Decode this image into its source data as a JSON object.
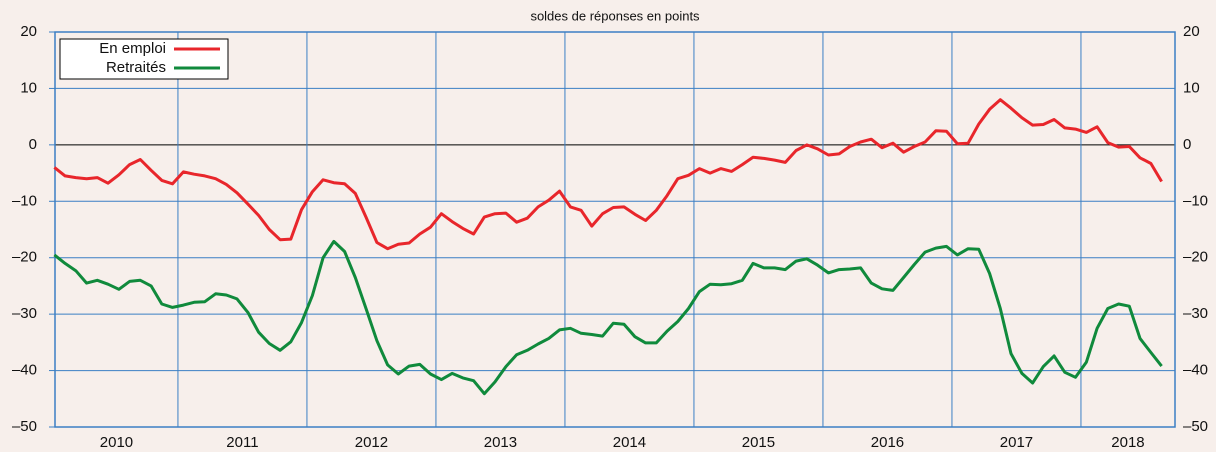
{
  "chart_data": {
    "type": "line",
    "subtitle": "soldes de réponses en points",
    "categories": [
      "2010",
      "2011",
      "2012",
      "2013",
      "2014",
      "2015",
      "2016",
      "2017",
      "2018"
    ],
    "x": [
      2010.042,
      2010.125,
      2010.208,
      2010.292,
      2010.375,
      2010.458,
      2010.542,
      2010.625,
      2010.708,
      2010.792,
      2010.875,
      2010.958,
      2011.042,
      2011.125,
      2011.208,
      2011.292,
      2011.375,
      2011.458,
      2011.542,
      2011.625,
      2011.708,
      2011.792,
      2011.875,
      2011.958,
      2012.042,
      2012.125,
      2012.208,
      2012.292,
      2012.375,
      2012.458,
      2012.542,
      2012.625,
      2012.708,
      2012.792,
      2012.875,
      2012.958,
      2013.042,
      2013.125,
      2013.208,
      2013.292,
      2013.375,
      2013.458,
      2013.542,
      2013.625,
      2013.708,
      2013.792,
      2013.875,
      2013.958,
      2014.042,
      2014.125,
      2014.208,
      2014.292,
      2014.375,
      2014.458,
      2014.542,
      2014.625,
      2014.708,
      2014.792,
      2014.875,
      2014.958,
      2015.042,
      2015.125,
      2015.208,
      2015.292,
      2015.375,
      2015.458,
      2015.542,
      2015.625,
      2015.708,
      2015.792,
      2015.875,
      2015.958,
      2016.042,
      2016.125,
      2016.208,
      2016.292,
      2016.375,
      2016.458,
      2016.542,
      2016.625,
      2016.708,
      2016.792,
      2016.875,
      2016.958,
      2017.042,
      2017.125,
      2017.208,
      2017.292,
      2017.375,
      2017.458,
      2017.542,
      2017.625,
      2017.708,
      2017.792,
      2017.875,
      2017.958,
      2018.042,
      2018.125,
      2018.208,
      2018.292,
      2018.375,
      2018.458,
      2018.542,
      2018.625
    ],
    "series": [
      {
        "name": "En emploi",
        "color": "#e8262b",
        "values": [
          -4,
          -5.5,
          -5.8,
          -6,
          -5.8,
          -6.8,
          -5.3,
          -3.5,
          -2.6,
          -4.5,
          -6.3,
          -6.9,
          -4.8,
          -5.2,
          -5.5,
          -6,
          -7,
          -8.5,
          -10.5,
          -12.5,
          -15,
          -16.8,
          -16.7,
          -11.5,
          -8.3,
          -6.2,
          -6.7,
          -6.9,
          -8.6,
          -12.8,
          -17.3,
          -18.4,
          -17.6,
          -17.4,
          -15.8,
          -14.6,
          -12.2,
          -13.6,
          -14.8,
          -15.8,
          -12.8,
          -12.2,
          -12.1,
          -13.7,
          -13,
          -11,
          -9.8,
          -8.2,
          -11,
          -11.6,
          -14.4,
          -12.2,
          -11.1,
          -11,
          -12.3,
          -13.4,
          -11.6,
          -9,
          -6,
          -5.4,
          -4.2,
          -5,
          -4.2,
          -4.7,
          -3.5,
          -2.2,
          -2.4,
          -2.7,
          -3.1,
          -1,
          0,
          -0.7,
          -1.8,
          -1.6,
          -0.3,
          0.5,
          1,
          -0.5,
          0.3,
          -1.3,
          -0.3,
          0.5,
          2.5,
          2.4,
          0.2,
          0.3,
          3.7,
          6.3,
          8,
          6.5,
          4.8,
          3.5,
          3.6,
          4.5,
          3,
          2.8,
          2.2,
          3.2,
          0.4,
          -0.4,
          -0.3,
          -2.3,
          -3.3,
          -6.5
        ]
      },
      {
        "name": "Retraités",
        "color": "#108a3c",
        "values": [
          -19.5,
          -21,
          -22.3,
          -24.5,
          -24,
          -24.7,
          -25.6,
          -24.2,
          -24,
          -25,
          -28.2,
          -28.8,
          -28.4,
          -27.9,
          -27.8,
          -26.4,
          -26.6,
          -27.3,
          -29.7,
          -33.2,
          -35.2,
          -36.4,
          -34.9,
          -31.5,
          -26.7,
          -20,
          -17.1,
          -18.9,
          -23.5,
          -29,
          -34.7,
          -39,
          -40.6,
          -39.2,
          -38.9,
          -40.6,
          -41.6,
          -40.5,
          -41.3,
          -41.8,
          -44.1,
          -42,
          -39.3,
          -37.2,
          -36.4,
          -35.3,
          -34.3,
          -32.8,
          -32.5,
          -33.4,
          -33.6,
          -33.9,
          -31.6,
          -31.8,
          -34,
          -35.1,
          -35.1,
          -33,
          -31.3,
          -29,
          -26,
          -24.7,
          -24.8,
          -24.6,
          -24,
          -21,
          -21.8,
          -21.8,
          -22.1,
          -20.6,
          -20.2,
          -21.3,
          -22.7,
          -22.1,
          -22,
          -21.8,
          -24.5,
          -25.5,
          -25.8,
          -23.5,
          -21.2,
          -19,
          -18.3,
          -18,
          -19.5,
          -18.4,
          -18.5,
          -22.8,
          -29,
          -37,
          -40.5,
          -42.2,
          -39.3,
          -37.4,
          -40.3,
          -41.2,
          -38.5,
          -32.5,
          -29,
          -28.2,
          -28.6,
          -34.3,
          -36.8,
          -39.2
        ]
      }
    ],
    "xlim": [
      2010.047,
      2018.729
    ],
    "xticks": [
      2011,
      2012,
      2013,
      2014,
      2015,
      2016,
      2017,
      2018
    ],
    "ylim": [
      -50,
      20
    ],
    "yticks": [
      {
        "value": -50,
        "label": "–50"
      },
      {
        "value": -40,
        "label": "–40"
      },
      {
        "value": -30,
        "label": "–30"
      },
      {
        "value": -20,
        "label": "–20"
      },
      {
        "value": -10,
        "label": "–10"
      },
      0,
      10,
      20
    ],
    "grid": true,
    "legend": "top-left"
  }
}
